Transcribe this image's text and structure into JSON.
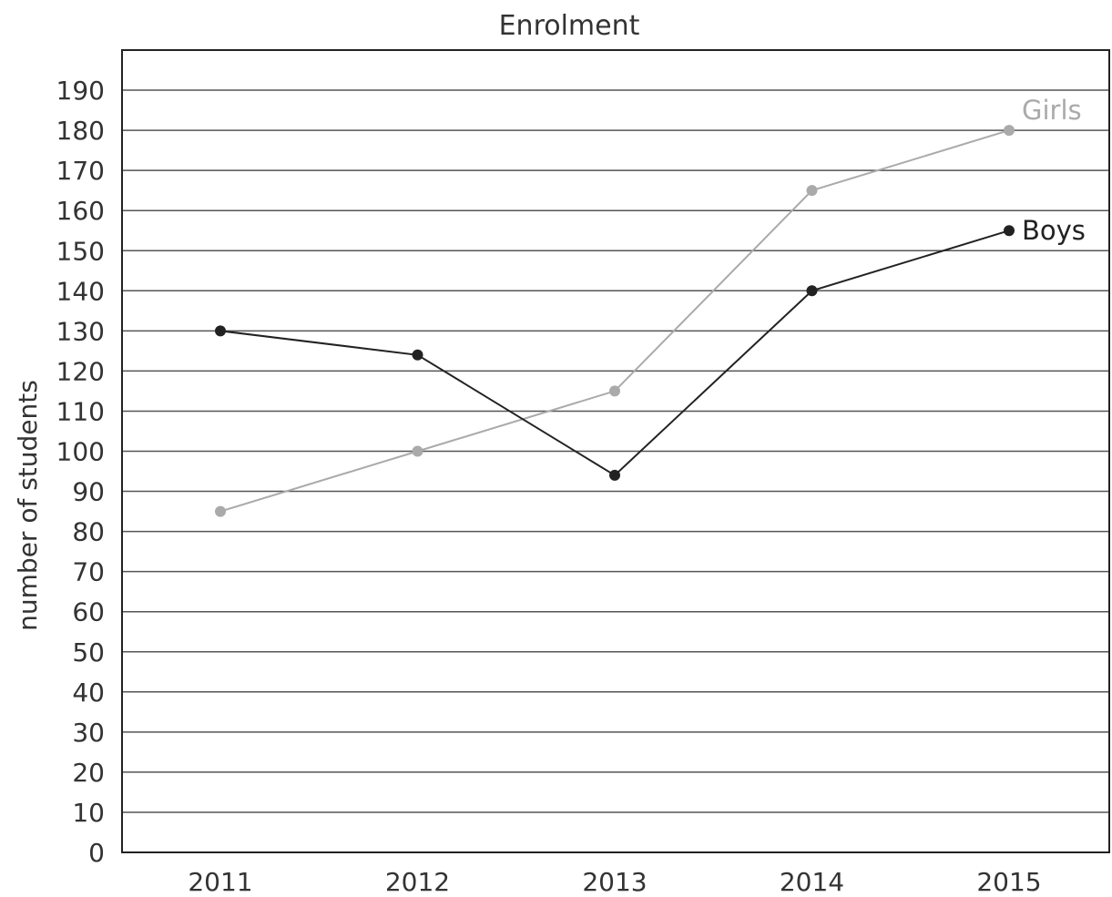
{
  "chart_data": {
    "type": "line",
    "title": "Enrolment",
    "xlabel": "",
    "ylabel": "number of students",
    "categories": [
      "2011",
      "2012",
      "2013",
      "2014",
      "2015"
    ],
    "ylim": [
      0,
      200
    ],
    "yticks": [
      0,
      10,
      20,
      30,
      40,
      50,
      60,
      70,
      80,
      90,
      100,
      110,
      120,
      130,
      140,
      150,
      160,
      170,
      180,
      190
    ],
    "grid": true,
    "legend": "inline labels at line ends",
    "series": [
      {
        "name": "Girls",
        "values": [
          85,
          100,
          115,
          165,
          180
        ],
        "color": "#aaaaaa"
      },
      {
        "name": "Boys",
        "values": [
          130,
          124,
          94,
          140,
          155
        ],
        "color": "#222222"
      }
    ]
  }
}
